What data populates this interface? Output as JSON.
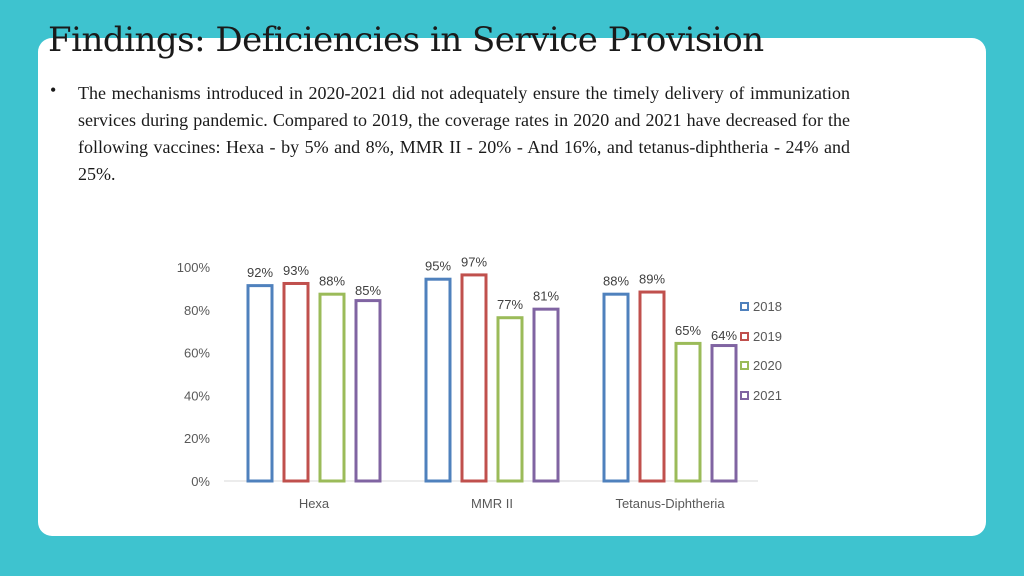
{
  "slide": {
    "title": "Findings: Deficiencies in Service Provision",
    "bullet_marker": "•",
    "bullet_text": "The mechanisms introduced in 2020-2021 did not adequately ensure the timely delivery of immunization services during pandemic. Compared to 2019, the coverage rates in 2020 and 2021 have decreased for the following vaccines: Hexa - by 5% and 8%, MMR II - 20% - And 16%, and tetanus-diphtheria - 24% and 25%."
  },
  "colors": {
    "background": "#3ec3cf",
    "series": [
      "#4f81bd",
      "#c0504d",
      "#9bbb59",
      "#8064a2"
    ]
  },
  "chart_data": {
    "type": "bar",
    "categories": [
      "Hexa",
      "MMR II",
      "Tetanus-Diphtheria"
    ],
    "series": [
      {
        "name": "2018",
        "values": [
          92,
          95,
          88
        ]
      },
      {
        "name": "2019",
        "values": [
          93,
          97,
          89
        ]
      },
      {
        "name": "2020",
        "values": [
          88,
          77,
          65
        ]
      },
      {
        "name": "2021",
        "values": [
          85,
          81,
          64
        ]
      }
    ],
    "y_ticks": [
      "0%",
      "20%",
      "40%",
      "60%",
      "80%",
      "100%"
    ],
    "ylim": [
      0,
      100
    ],
    "value_suffix": "%",
    "grid": false,
    "legend_position": "right",
    "title": "",
    "xlabel": "",
    "ylabel": ""
  }
}
